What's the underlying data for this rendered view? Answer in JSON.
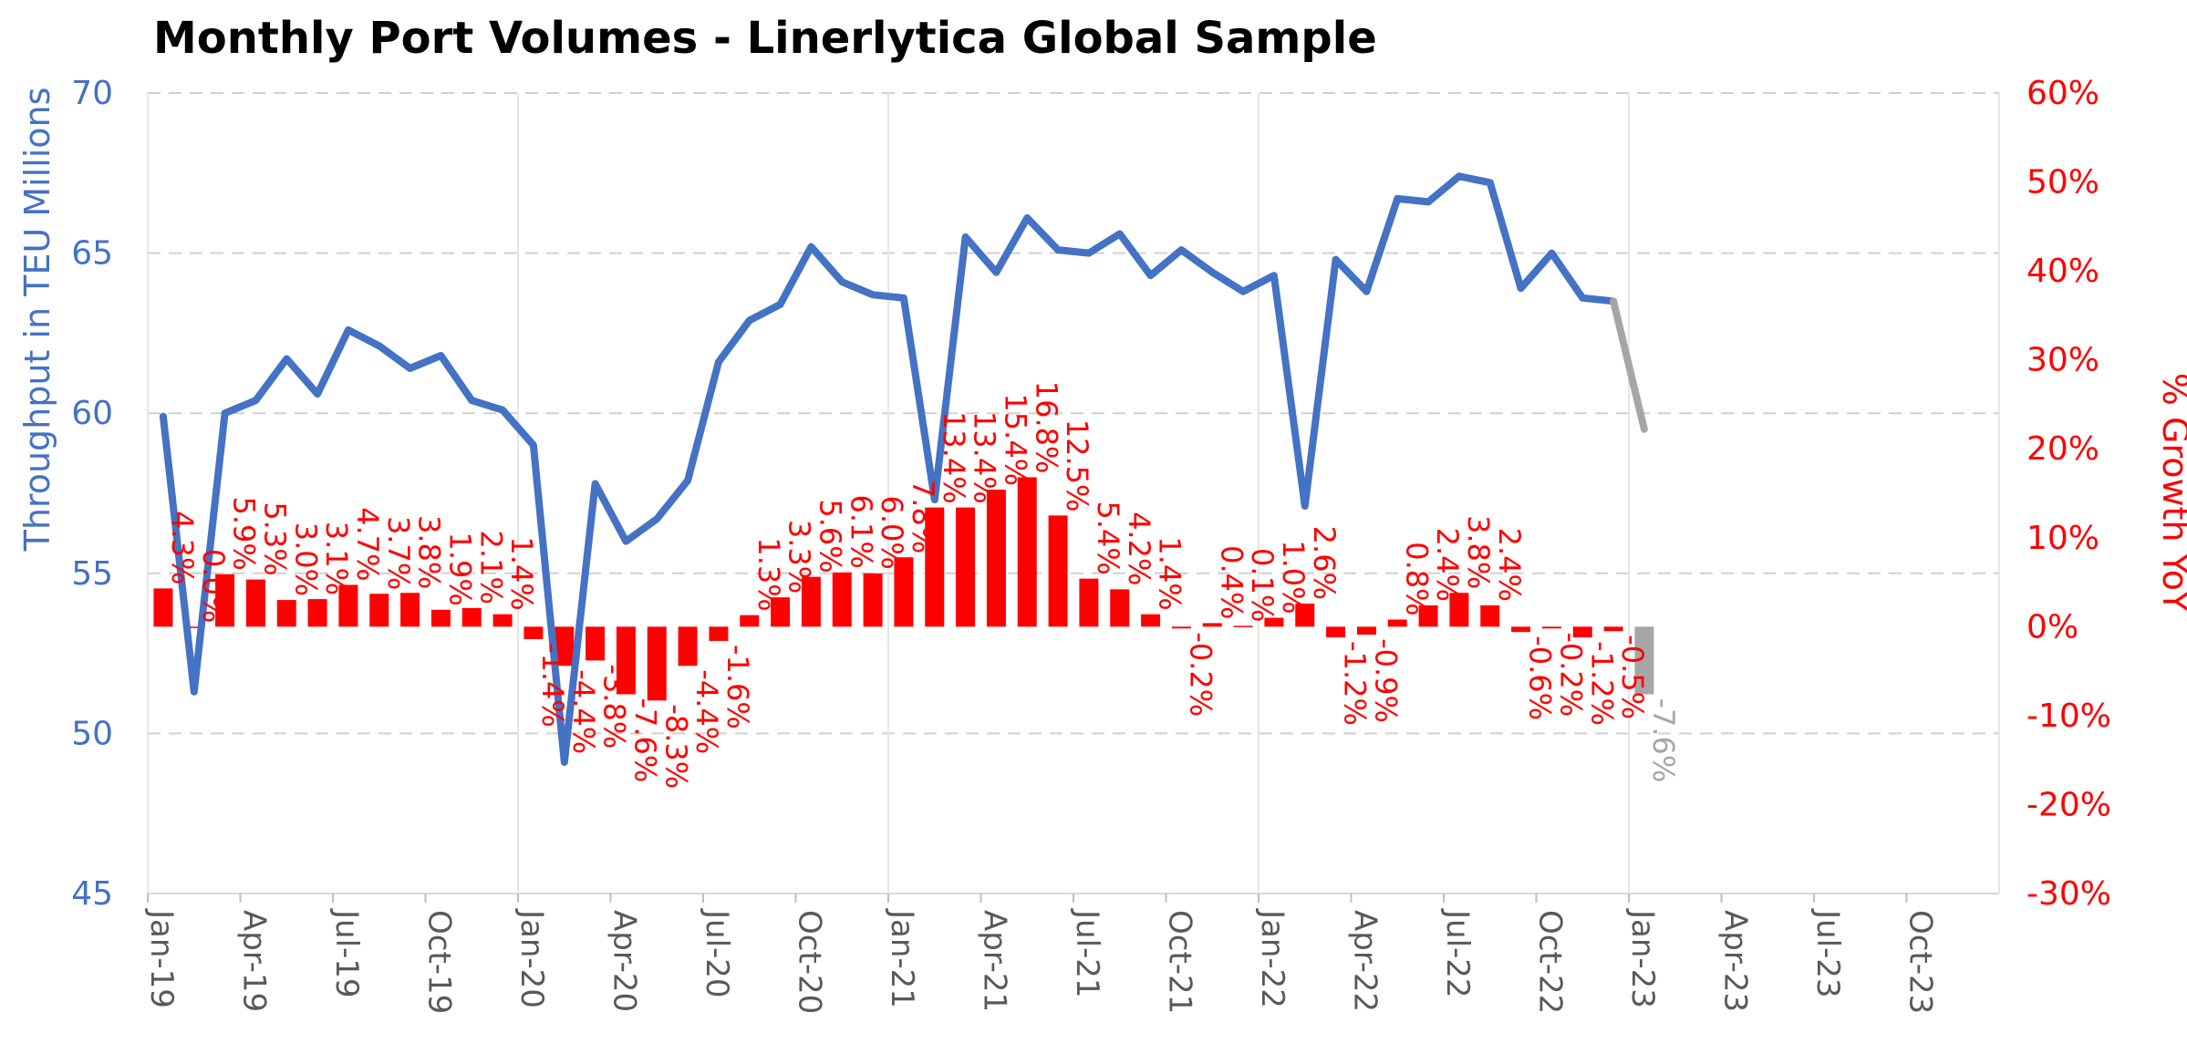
{
  "chart_data": {
    "type": "bar+line",
    "title": "Monthly Port Volumes - Linerlytica Global Sample",
    "ylabel_left": "Throughput in TEU Millions",
    "ylabel_right": "% Growth YoY",
    "ylim_left": [
      45,
      70
    ],
    "yticks_left": [
      45,
      50,
      55,
      60,
      65,
      70
    ],
    "ylim_right": [
      -30,
      60
    ],
    "yticks_right": [
      "-30%",
      "-20%",
      "-10%",
      "0%",
      "10%",
      "20%",
      "30%",
      "40%",
      "50%",
      "60%"
    ],
    "x_tick_labels": [
      "Jan-19",
      "Apr-19",
      "Jul-19",
      "Oct-19",
      "Jan-20",
      "Apr-20",
      "Jul-20",
      "Oct-20",
      "Jan-21",
      "Apr-21",
      "Jul-21",
      "Oct-21",
      "Jan-22",
      "Apr-22",
      "Jul-22",
      "Oct-22",
      "Jan-23",
      "Apr-23",
      "Jul-23",
      "Oct-23"
    ],
    "x_range": [
      "Jan-19",
      "Dec-23"
    ],
    "grid": "horizontal dashed",
    "colors": {
      "volume_line": "#4472c4",
      "growth_bar": "#ff0000",
      "estimate": "#a6a6a6",
      "left_axis": "#4472c4",
      "right_axis": "#ff0000"
    },
    "months": [
      "Jan-19",
      "Feb-19",
      "Mar-19",
      "Apr-19",
      "May-19",
      "Jun-19",
      "Jul-19",
      "Aug-19",
      "Sep-19",
      "Oct-19",
      "Nov-19",
      "Dec-19",
      "Jan-20",
      "Feb-20",
      "Mar-20",
      "Apr-20",
      "May-20",
      "Jun-20",
      "Jul-20",
      "Aug-20",
      "Sep-20",
      "Oct-20",
      "Nov-20",
      "Dec-20",
      "Jan-21",
      "Feb-21",
      "Mar-21",
      "Apr-21",
      "May-21",
      "Jun-21",
      "Jul-21",
      "Aug-21",
      "Sep-21",
      "Oct-21",
      "Nov-21",
      "Dec-21",
      "Jan-22",
      "Feb-22",
      "Mar-22",
      "Apr-22",
      "May-22",
      "Jun-22",
      "Jul-22",
      "Aug-22",
      "Sep-22",
      "Oct-22",
      "Nov-22",
      "Dec-22",
      "Jan-23"
    ],
    "series": [
      {
        "axis": "left",
        "kind": "line",
        "values": [
          59.9,
          51.3,
          60.0,
          60.4,
          61.7,
          60.6,
          62.6,
          62.1,
          61.4,
          61.8,
          60.4,
          60.1,
          59.0,
          49.1,
          57.8,
          56.0,
          56.7,
          57.9,
          61.6,
          62.9,
          63.4,
          65.2,
          64.1,
          63.7,
          63.6,
          57.3,
          65.5,
          64.4,
          66.1,
          65.1,
          65.0,
          65.6,
          64.3,
          65.1,
          64.4,
          63.8,
          64.3,
          57.1,
          64.8,
          63.8,
          66.7,
          66.6,
          67.4,
          67.2,
          63.9,
          65.0,
          63.6,
          63.5,
          null
        ],
        "estimate_segment": [
          {
            "month": "Dec-22",
            "value": 63.5
          },
          {
            "month": "Jan-23",
            "value": 59.5
          }
        ]
      },
      {
        "axis": "right",
        "kind": "bar",
        "values": [
          4.3,
          0.0,
          5.9,
          5.3,
          3.0,
          3.1,
          4.7,
          3.7,
          3.8,
          1.9,
          2.1,
          1.4,
          -1.4,
          -4.4,
          -3.8,
          -7.6,
          -8.3,
          -4.4,
          -1.6,
          1.3,
          3.3,
          5.6,
          6.1,
          6.0,
          7.8,
          13.4,
          13.4,
          15.4,
          16.8,
          12.5,
          5.4,
          4.2,
          1.4,
          -0.2,
          0.4,
          0.1,
          1.0,
          2.6,
          -1.2,
          -0.9,
          0.8,
          2.4,
          3.8,
          2.4,
          -0.6,
          -0.2,
          -1.2,
          -0.5,
          -7.6
        ],
        "labels": [
          "4.3%",
          "0.0%",
          "5.9%",
          "5.3%",
          "3.0%",
          "3.1%",
          "4.7%",
          "3.7%",
          "3.8%",
          "1.9%",
          "2.1%",
          "1.4%",
          "-1.4%",
          "-4.4%",
          "-3.8%",
          "-7.6%",
          "-8.3%",
          "-4.4%",
          "-1.6%",
          "1.3%",
          "3.3%",
          "5.6%",
          "6.1%",
          "6.0%",
          "7.8%",
          "13.4%",
          "13.4%",
          "15.4%",
          "16.8%",
          "12.5%",
          "5.4%",
          "4.2%",
          "1.4%",
          "-0.2%",
          "0.4%",
          "0.1%",
          "1.0%",
          "2.6%",
          "-1.2%",
          "-0.9%",
          "0.8%",
          "2.4%",
          "3.8%",
          "2.4%",
          "-0.6%",
          "-0.2%",
          "-1.2%",
          "-0.5%",
          "-7.6%"
        ],
        "estimate_index": 48
      }
    ]
  }
}
